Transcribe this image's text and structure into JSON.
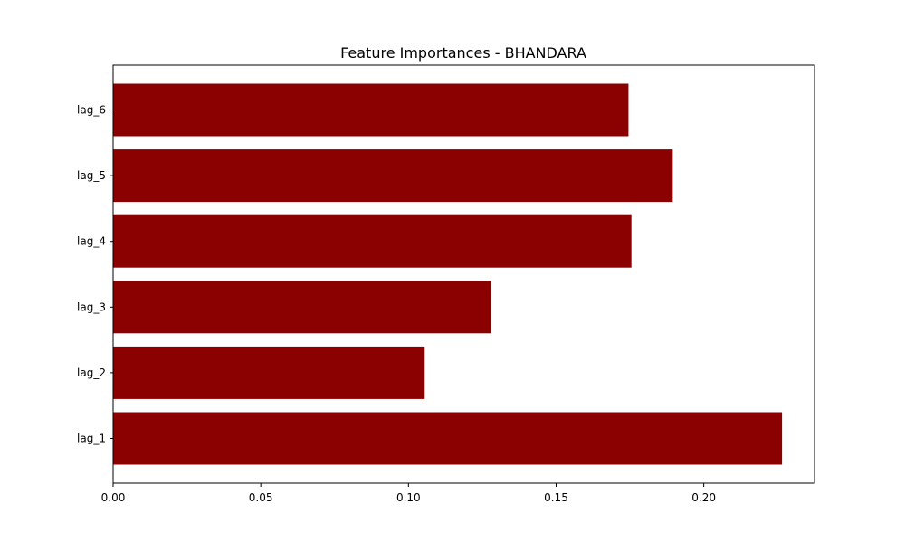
{
  "chart_data": {
    "type": "bar",
    "orientation": "horizontal",
    "title": "Feature Importances - BHANDARA",
    "xlabel": "",
    "ylabel": "",
    "categories": [
      "lag_1",
      "lag_2",
      "lag_3",
      "lag_4",
      "lag_5",
      "lag_6"
    ],
    "values": [
      0.2265,
      0.1055,
      0.128,
      0.1755,
      0.1895,
      0.1745
    ],
    "xlim": [
      0.0,
      0.2375
    ],
    "x_ticks": [
      "0.00",
      "0.05",
      "0.10",
      "0.15",
      "0.20"
    ],
    "bar_color": "#8b0000",
    "grid": false,
    "legend": "none"
  }
}
